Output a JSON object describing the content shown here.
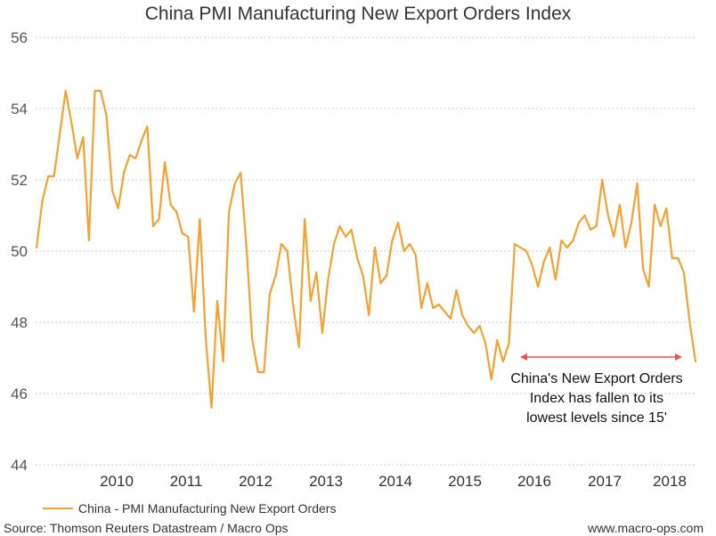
{
  "chart_data": {
    "type": "line",
    "title": "China PMI Manufacturing New Export Orders Index",
    "ylim": [
      44,
      56
    ],
    "yticks": [
      "44",
      "46",
      "48",
      "50",
      "52",
      "54",
      "56"
    ],
    "xticks": [
      "2010",
      "2011",
      "2012",
      "2013",
      "2014",
      "2015",
      "2016",
      "2017",
      "2018"
    ],
    "grid": "horizontal dotted",
    "legend_position": "bottom-left",
    "series": [
      {
        "name": "China - PMI Manufacturing New Export Orders",
        "color": "#F2A133",
        "values": [
          50.1,
          51.4,
          52.1,
          52.1,
          53.3,
          54.5,
          53.6,
          52.6,
          53.2,
          50.3,
          54.5,
          54.5,
          53.8,
          51.7,
          51.2,
          52.2,
          52.7,
          52.6,
          53.1,
          53.5,
          50.7,
          50.9,
          52.5,
          51.3,
          51.1,
          50.5,
          50.4,
          48.3,
          50.9,
          47.6,
          45.6,
          48.6,
          46.9,
          51.1,
          51.9,
          52.2,
          50.1,
          47.5,
          46.6,
          46.6,
          48.8,
          49.3,
          50.2,
          50.0,
          48.5,
          47.3,
          50.9,
          48.6,
          49.4,
          47.7,
          49.2,
          50.2,
          50.7,
          50.4,
          50.6,
          49.8,
          49.3,
          48.2,
          50.1,
          49.1,
          49.3,
          50.3,
          50.8,
          50.0,
          50.2,
          49.9,
          48.4,
          49.1,
          48.4,
          48.5,
          48.3,
          48.1,
          48.9,
          48.2,
          47.9,
          47.7,
          47.9,
          47.4,
          46.4,
          47.5,
          46.9,
          47.4,
          50.2,
          50.1,
          50.0,
          49.6,
          49.0,
          49.7,
          50.1,
          49.2,
          50.3,
          50.1,
          50.3,
          50.8,
          51.0,
          50.6,
          50.7,
          52.0,
          51.0,
          50.4,
          51.3,
          50.1,
          50.8,
          51.9,
          49.5,
          49.0,
          51.3,
          50.7,
          51.2,
          49.8,
          49.8,
          49.4,
          48.0,
          46.9
        ]
      }
    ],
    "annotation": {
      "lines": [
        "China's New Export Orders",
        "Index has fallen to its",
        "lowest levels since 15'"
      ],
      "arrow_color": "#E8534F"
    }
  },
  "source_text": "Source: Thomson Reuters Datastream / Macro Ops",
  "website_text": "www.macro-ops.com"
}
